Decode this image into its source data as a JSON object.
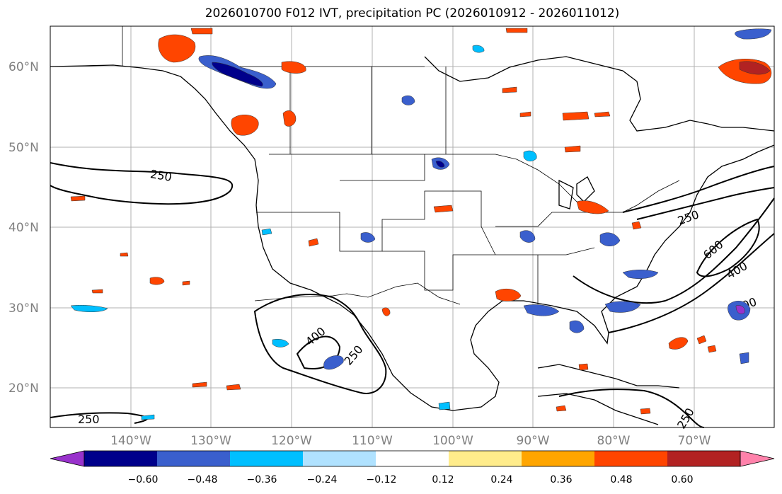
{
  "title": "2026010700 F012 IVT, precipitation PC (2026010912 - 2026011012)",
  "map": {
    "lat_labels": [
      "60°N",
      "50°N",
      "40°N",
      "30°N",
      "20°N"
    ],
    "lon_labels": [
      "140°W",
      "130°W",
      "120°W",
      "110°W",
      "100°W",
      "90°W",
      "80°W",
      "70°W"
    ],
    "contour_labels": [
      "250",
      "250",
      "400",
      "250",
      "400",
      "600",
      "400",
      "250",
      "250"
    ]
  },
  "colorbar": {
    "ticks": [
      "−0.60",
      "−0.48",
      "−0.36",
      "−0.24",
      "−0.12",
      "0.12",
      "0.24",
      "0.36",
      "0.48",
      "0.60"
    ],
    "colors": [
      "#9932cc",
      "#00008b",
      "#3a5fcd",
      "#00bfff",
      "#b0e2ff",
      "#ffffff",
      "#ffec8b",
      "#ffa500",
      "#ff4500",
      "#b22222",
      "#ff82ab"
    ]
  }
}
